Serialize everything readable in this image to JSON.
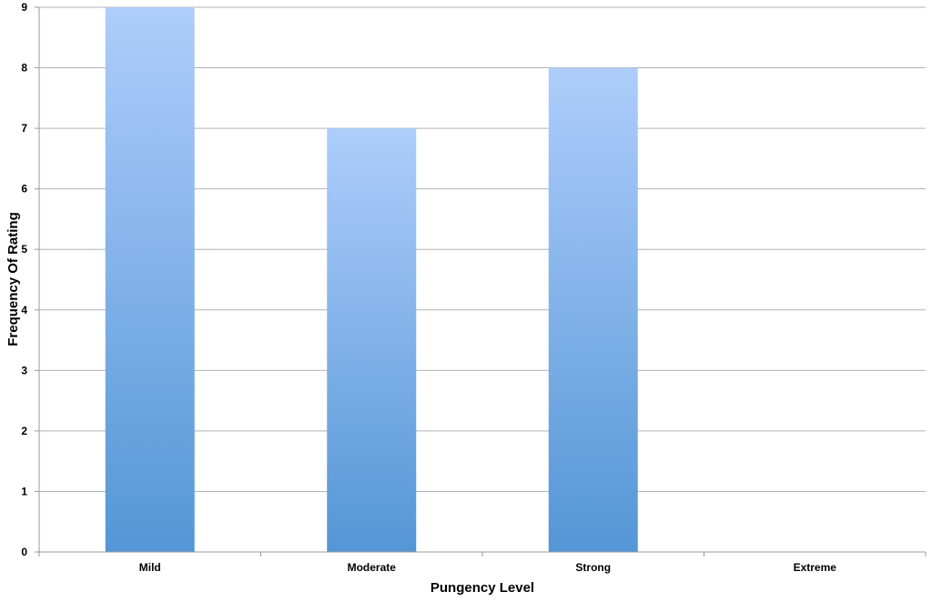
{
  "chart_data": {
    "type": "bar",
    "categories": [
      "Mild",
      "Moderate",
      "Strong",
      "Extreme"
    ],
    "values": [
      9,
      7,
      8,
      0
    ],
    "title": "",
    "xlabel": "Pungency Level",
    "ylabel": "Frequency Of Rating",
    "ylim": [
      0,
      9
    ],
    "yticks": [
      "0",
      "1",
      "2",
      "3",
      "4",
      "5",
      "6",
      "7",
      "8",
      "9"
    ],
    "grid": true,
    "legend": "none",
    "colors": {
      "bar_top": "#aecdfb",
      "bar_bottom": "#5496d6",
      "grid": "#b3b3b3",
      "axis": "#999999"
    }
  }
}
